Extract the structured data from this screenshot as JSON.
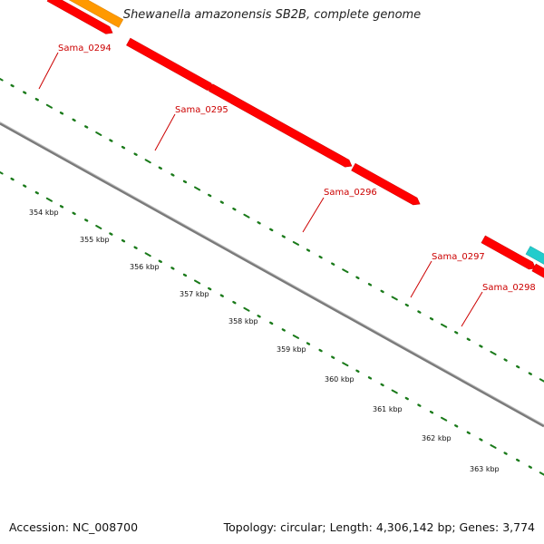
{
  "title": "Shewanella amazonensis SB2B, complete genome",
  "footer": {
    "accession": "Accession: NC_008700",
    "topology": "Topology: circular; Length: 4,306,142 bp; Genes: 3,774"
  },
  "colors": {
    "backbone": "#777777",
    "cds": "#ff0000",
    "orange_feature": "#ff9900",
    "cyan_feature": "#22cccc",
    "blue_feature": "#4a7fb0",
    "skew_dots": "#1a7a1a",
    "label": "#cc0000"
  },
  "genes": [
    {
      "name": "Sama_0294"
    },
    {
      "name": "Sama_0295"
    },
    {
      "name": "Sama_0296"
    },
    {
      "name": "Sama_0297"
    },
    {
      "name": "Sama_0298"
    }
  ],
  "scale_ticks": [
    "354 kbp",
    "355 kbp",
    "356 kbp",
    "357 kbp",
    "358 kbp",
    "359 kbp",
    "360 kbp",
    "361 kbp",
    "362 kbp",
    "363 kbp"
  ]
}
